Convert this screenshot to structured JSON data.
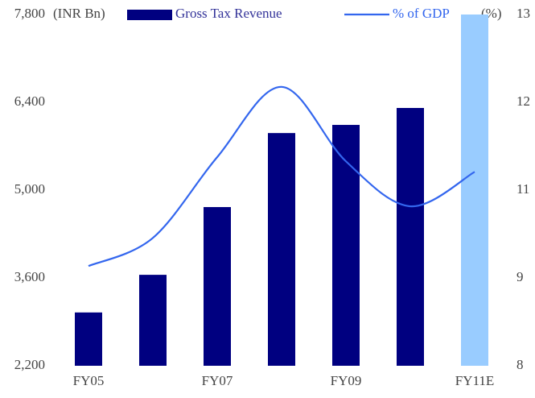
{
  "chart_data": {
    "type": "bar-line",
    "y_label": "(INR Bn)",
    "y2_label": "(%)",
    "categories": [
      "FY05",
      null,
      "FY07",
      null,
      "FY09",
      null,
      "FY11E"
    ],
    "series": [
      {
        "name": "Gross Tax Revenue",
        "type": "bar",
        "color": "#000080",
        "colors": [
          "#000080",
          "#000080",
          "#000080",
          "#000080",
          "#000080",
          "#000080",
          "#99ccff"
        ],
        "values": [
          3050,
          3650,
          4730,
          5910,
          6040,
          6310,
          7800
        ]
      },
      {
        "name": "% of GDP",
        "type": "line",
        "axis": "y2",
        "color": "#3366ee",
        "values": [
          9.42,
          9.82,
          10.97,
          11.97,
          10.91,
          10.27,
          10.76
        ]
      }
    ],
    "ylim": [
      2200,
      7800
    ],
    "yticks": [
      {
        "value": 2200,
        "label": "2,200"
      },
      {
        "value": 3600,
        "label": "3,600"
      },
      {
        "value": 5000,
        "label": "5,000"
      },
      {
        "value": 6400,
        "label": "6,400"
      },
      {
        "value": 7800,
        "label": "7,800"
      }
    ],
    "y2lim": [
      8,
      13
    ],
    "y2ticks": [
      8,
      {
        "value": 9.25,
        "label": "9"
      },
      {
        "value": 10.5,
        "label": "11"
      },
      {
        "value": 11.75,
        "label": "12"
      },
      13
    ],
    "legend": "top"
  }
}
